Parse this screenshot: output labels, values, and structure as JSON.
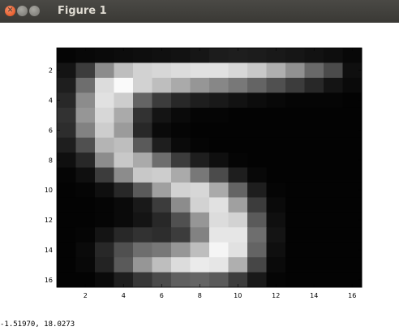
{
  "window": {
    "title": "Figure 1",
    "buttons": [
      "close",
      "minimize",
      "maximize"
    ]
  },
  "status": {
    "coordinates": "-1.51970,  18.0273"
  },
  "chart_data": {
    "type": "heatmap",
    "title": "",
    "xlabel": "",
    "ylabel": "",
    "colormap": "gray",
    "xlim": [
      1,
      16
    ],
    "ylim": [
      16,
      1
    ],
    "x_ticks": [
      "2",
      "4",
      "6",
      "8",
      "10",
      "12",
      "14",
      "16"
    ],
    "y_ticks": [
      "2",
      "4",
      "6",
      "8",
      "10",
      "12",
      "14",
      "16"
    ],
    "values": [
      [
        5,
        8,
        10,
        12,
        14,
        16,
        18,
        22,
        28,
        30,
        28,
        25,
        22,
        18,
        14,
        8
      ],
      [
        20,
        60,
        140,
        190,
        210,
        215,
        220,
        225,
        225,
        215,
        200,
        175,
        145,
        105,
        75,
        15
      ],
      [
        30,
        110,
        220,
        250,
        210,
        190,
        170,
        150,
        135,
        120,
        100,
        80,
        60,
        40,
        20,
        10
      ],
      [
        40,
        140,
        225,
        205,
        100,
        60,
        40,
        30,
        25,
        18,
        12,
        8,
        5,
        5,
        5,
        3
      ],
      [
        50,
        150,
        215,
        170,
        50,
        20,
        10,
        5,
        5,
        3,
        3,
        3,
        3,
        3,
        3,
        3
      ],
      [
        45,
        130,
        205,
        155,
        40,
        10,
        5,
        3,
        3,
        3,
        3,
        3,
        3,
        3,
        3,
        3
      ],
      [
        30,
        80,
        180,
        190,
        90,
        30,
        10,
        5,
        3,
        3,
        3,
        3,
        3,
        3,
        3,
        3
      ],
      [
        15,
        40,
        140,
        200,
        170,
        110,
        60,
        30,
        15,
        5,
        3,
        3,
        3,
        3,
        3,
        3
      ],
      [
        5,
        15,
        60,
        140,
        200,
        205,
        170,
        120,
        75,
        30,
        8,
        3,
        3,
        3,
        3,
        3
      ],
      [
        3,
        5,
        15,
        40,
        90,
        160,
        210,
        215,
        170,
        100,
        30,
        5,
        3,
        3,
        3,
        3
      ],
      [
        3,
        3,
        5,
        10,
        25,
        60,
        140,
        210,
        225,
        160,
        60,
        10,
        3,
        3,
        3,
        3
      ],
      [
        3,
        3,
        5,
        10,
        20,
        40,
        80,
        150,
        220,
        210,
        90,
        15,
        3,
        3,
        3,
        3
      ],
      [
        3,
        5,
        20,
        40,
        50,
        45,
        60,
        130,
        230,
        230,
        110,
        20,
        3,
        3,
        3,
        3
      ],
      [
        3,
        10,
        40,
        80,
        110,
        120,
        150,
        190,
        245,
        225,
        100,
        15,
        3,
        3,
        3,
        3
      ],
      [
        3,
        8,
        35,
        90,
        150,
        190,
        220,
        235,
        230,
        175,
        70,
        10,
        3,
        3,
        3,
        3
      ],
      [
        3,
        3,
        10,
        30,
        55,
        75,
        95,
        100,
        90,
        60,
        25,
        5,
        3,
        3,
        3,
        3
      ]
    ]
  }
}
